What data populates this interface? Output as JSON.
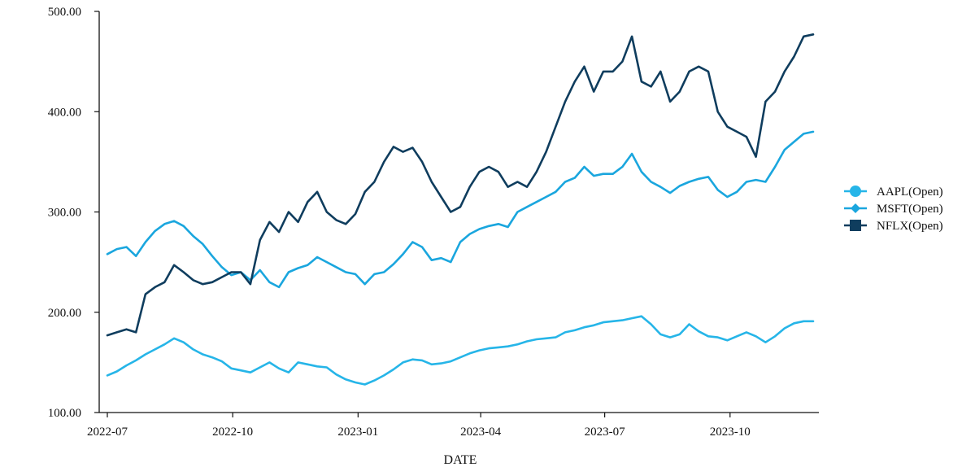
{
  "chart_data": {
    "type": "line",
    "title": "",
    "xlabel": "DATE",
    "ylabel": "",
    "xlim": [
      "2022-07-01",
      "2023-12-01"
    ],
    "ylim": [
      100,
      500
    ],
    "y_ticks": [
      "100.00",
      "200.00",
      "300.00",
      "400.00",
      "500.00"
    ],
    "x_ticks": [
      {
        "date": "2022-07-01",
        "label": "2022-07"
      },
      {
        "date": "2022-10-01",
        "label": "2022-10"
      },
      {
        "date": "2023-01-01",
        "label": "2023-01"
      },
      {
        "date": "2023-04-01",
        "label": "2023-04"
      },
      {
        "date": "2023-07-01",
        "label": "2023-07"
      },
      {
        "date": "2023-10-01",
        "label": "2023-10"
      }
    ],
    "grid": false,
    "legend_position": "right",
    "series": [
      {
        "name": "AAPL(Open)",
        "color": "#26b5e8",
        "marker": "circle",
        "points": [
          [
            "2022-07-01",
            137
          ],
          [
            "2022-07-08",
            141
          ],
          [
            "2022-07-15",
            147
          ],
          [
            "2022-07-22",
            152
          ],
          [
            "2022-07-29",
            158
          ],
          [
            "2022-08-05",
            163
          ],
          [
            "2022-08-12",
            168
          ],
          [
            "2022-08-19",
            174
          ],
          [
            "2022-08-26",
            170
          ],
          [
            "2022-09-02",
            163
          ],
          [
            "2022-09-09",
            158
          ],
          [
            "2022-09-16",
            155
          ],
          [
            "2022-09-23",
            151
          ],
          [
            "2022-09-30",
            144
          ],
          [
            "2022-10-07",
            142
          ],
          [
            "2022-10-14",
            140
          ],
          [
            "2022-10-21",
            145
          ],
          [
            "2022-10-28",
            150
          ],
          [
            "2022-11-04",
            144
          ],
          [
            "2022-11-11",
            140
          ],
          [
            "2022-11-18",
            150
          ],
          [
            "2022-11-25",
            148
          ],
          [
            "2022-12-02",
            146
          ],
          [
            "2022-12-09",
            145
          ],
          [
            "2022-12-16",
            138
          ],
          [
            "2022-12-23",
            133
          ],
          [
            "2022-12-30",
            130
          ],
          [
            "2023-01-06",
            128
          ],
          [
            "2023-01-13",
            132
          ],
          [
            "2023-01-20",
            137
          ],
          [
            "2023-01-27",
            143
          ],
          [
            "2023-02-03",
            150
          ],
          [
            "2023-02-10",
            153
          ],
          [
            "2023-02-17",
            152
          ],
          [
            "2023-02-24",
            148
          ],
          [
            "2023-03-03",
            149
          ],
          [
            "2023-03-10",
            151
          ],
          [
            "2023-03-17",
            155
          ],
          [
            "2023-03-24",
            159
          ],
          [
            "2023-03-31",
            162
          ],
          [
            "2023-04-07",
            164
          ],
          [
            "2023-04-14",
            165
          ],
          [
            "2023-04-21",
            166
          ],
          [
            "2023-04-28",
            168
          ],
          [
            "2023-05-05",
            171
          ],
          [
            "2023-05-12",
            173
          ],
          [
            "2023-05-19",
            174
          ],
          [
            "2023-05-26",
            175
          ],
          [
            "2023-06-02",
            180
          ],
          [
            "2023-06-09",
            182
          ],
          [
            "2023-06-16",
            185
          ],
          [
            "2023-06-23",
            187
          ],
          [
            "2023-06-30",
            190
          ],
          [
            "2023-07-07",
            191
          ],
          [
            "2023-07-14",
            192
          ],
          [
            "2023-07-21",
            194
          ],
          [
            "2023-07-28",
            196
          ],
          [
            "2023-08-04",
            188
          ],
          [
            "2023-08-11",
            178
          ],
          [
            "2023-08-18",
            175
          ],
          [
            "2023-08-25",
            178
          ],
          [
            "2023-09-01",
            188
          ],
          [
            "2023-09-08",
            181
          ],
          [
            "2023-09-15",
            176
          ],
          [
            "2023-09-22",
            175
          ],
          [
            "2023-09-29",
            172
          ],
          [
            "2023-10-06",
            176
          ],
          [
            "2023-10-13",
            180
          ],
          [
            "2023-10-20",
            176
          ],
          [
            "2023-10-27",
            170
          ],
          [
            "2023-11-03",
            176
          ],
          [
            "2023-11-10",
            184
          ],
          [
            "2023-11-17",
            189
          ],
          [
            "2023-11-24",
            191
          ],
          [
            "2023-12-01",
            191
          ]
        ]
      },
      {
        "name": "MSFT(Open)",
        "color": "#1aa6de",
        "marker": "diamond",
        "points": [
          [
            "2022-07-01",
            258
          ],
          [
            "2022-07-08",
            263
          ],
          [
            "2022-07-15",
            265
          ],
          [
            "2022-07-22",
            256
          ],
          [
            "2022-07-29",
            270
          ],
          [
            "2022-08-05",
            281
          ],
          [
            "2022-08-12",
            288
          ],
          [
            "2022-08-19",
            291
          ],
          [
            "2022-08-26",
            286
          ],
          [
            "2022-09-02",
            276
          ],
          [
            "2022-09-09",
            268
          ],
          [
            "2022-09-16",
            256
          ],
          [
            "2022-09-23",
            245
          ],
          [
            "2022-09-30",
            237
          ],
          [
            "2022-10-07",
            240
          ],
          [
            "2022-10-14",
            232
          ],
          [
            "2022-10-21",
            242
          ],
          [
            "2022-10-28",
            230
          ],
          [
            "2022-11-04",
            225
          ],
          [
            "2022-11-11",
            240
          ],
          [
            "2022-11-18",
            244
          ],
          [
            "2022-11-25",
            247
          ],
          [
            "2022-12-02",
            255
          ],
          [
            "2022-12-09",
            250
          ],
          [
            "2022-12-16",
            245
          ],
          [
            "2022-12-23",
            240
          ],
          [
            "2022-12-30",
            238
          ],
          [
            "2023-01-06",
            228
          ],
          [
            "2023-01-13",
            238
          ],
          [
            "2023-01-20",
            240
          ],
          [
            "2023-01-27",
            248
          ],
          [
            "2023-02-03",
            258
          ],
          [
            "2023-02-10",
            270
          ],
          [
            "2023-02-17",
            265
          ],
          [
            "2023-02-24",
            252
          ],
          [
            "2023-03-03",
            254
          ],
          [
            "2023-03-10",
            250
          ],
          [
            "2023-03-17",
            270
          ],
          [
            "2023-03-24",
            278
          ],
          [
            "2023-03-31",
            283
          ],
          [
            "2023-04-07",
            286
          ],
          [
            "2023-04-14",
            288
          ],
          [
            "2023-04-21",
            285
          ],
          [
            "2023-04-28",
            300
          ],
          [
            "2023-05-05",
            305
          ],
          [
            "2023-05-12",
            310
          ],
          [
            "2023-05-19",
            315
          ],
          [
            "2023-05-26",
            320
          ],
          [
            "2023-06-02",
            330
          ],
          [
            "2023-06-09",
            334
          ],
          [
            "2023-06-16",
            345
          ],
          [
            "2023-06-23",
            336
          ],
          [
            "2023-06-30",
            338
          ],
          [
            "2023-07-07",
            338
          ],
          [
            "2023-07-14",
            345
          ],
          [
            "2023-07-21",
            358
          ],
          [
            "2023-07-28",
            340
          ],
          [
            "2023-08-04",
            330
          ],
          [
            "2023-08-11",
            325
          ],
          [
            "2023-08-18",
            319
          ],
          [
            "2023-08-25",
            326
          ],
          [
            "2023-09-01",
            330
          ],
          [
            "2023-09-08",
            333
          ],
          [
            "2023-09-15",
            335
          ],
          [
            "2023-09-22",
            322
          ],
          [
            "2023-09-29",
            315
          ],
          [
            "2023-10-06",
            320
          ],
          [
            "2023-10-13",
            330
          ],
          [
            "2023-10-20",
            332
          ],
          [
            "2023-10-27",
            330
          ],
          [
            "2023-11-03",
            345
          ],
          [
            "2023-11-10",
            362
          ],
          [
            "2023-11-17",
            370
          ],
          [
            "2023-11-24",
            378
          ],
          [
            "2023-12-01",
            380
          ]
        ]
      },
      {
        "name": "NFLX(Open)",
        "color": "#0f3d5e",
        "marker": "square",
        "points": [
          [
            "2022-07-01",
            177
          ],
          [
            "2022-07-08",
            180
          ],
          [
            "2022-07-15",
            183
          ],
          [
            "2022-07-22",
            180
          ],
          [
            "2022-07-29",
            218
          ],
          [
            "2022-08-05",
            225
          ],
          [
            "2022-08-12",
            230
          ],
          [
            "2022-08-19",
            247
          ],
          [
            "2022-08-26",
            240
          ],
          [
            "2022-09-02",
            232
          ],
          [
            "2022-09-09",
            228
          ],
          [
            "2022-09-16",
            230
          ],
          [
            "2022-09-23",
            235
          ],
          [
            "2022-09-30",
            240
          ],
          [
            "2022-10-07",
            240
          ],
          [
            "2022-10-14",
            228
          ],
          [
            "2022-10-21",
            272
          ],
          [
            "2022-10-28",
            290
          ],
          [
            "2022-11-04",
            280
          ],
          [
            "2022-11-11",
            300
          ],
          [
            "2022-11-18",
            290
          ],
          [
            "2022-11-25",
            310
          ],
          [
            "2022-12-02",
            320
          ],
          [
            "2022-12-09",
            300
          ],
          [
            "2022-12-16",
            292
          ],
          [
            "2022-12-23",
            288
          ],
          [
            "2022-12-30",
            298
          ],
          [
            "2023-01-06",
            320
          ],
          [
            "2023-01-13",
            330
          ],
          [
            "2023-01-20",
            350
          ],
          [
            "2023-01-27",
            365
          ],
          [
            "2023-02-03",
            360
          ],
          [
            "2023-02-10",
            364
          ],
          [
            "2023-02-17",
            350
          ],
          [
            "2023-02-24",
            330
          ],
          [
            "2023-03-03",
            315
          ],
          [
            "2023-03-10",
            300
          ],
          [
            "2023-03-17",
            305
          ],
          [
            "2023-03-24",
            325
          ],
          [
            "2023-03-31",
            340
          ],
          [
            "2023-04-07",
            345
          ],
          [
            "2023-04-14",
            340
          ],
          [
            "2023-04-21",
            325
          ],
          [
            "2023-04-28",
            330
          ],
          [
            "2023-05-05",
            325
          ],
          [
            "2023-05-12",
            340
          ],
          [
            "2023-05-19",
            360
          ],
          [
            "2023-05-26",
            385
          ],
          [
            "2023-06-02",
            410
          ],
          [
            "2023-06-09",
            430
          ],
          [
            "2023-06-16",
            445
          ],
          [
            "2023-06-23",
            420
          ],
          [
            "2023-06-30",
            440
          ],
          [
            "2023-07-07",
            440
          ],
          [
            "2023-07-14",
            450
          ],
          [
            "2023-07-21",
            475
          ],
          [
            "2023-07-28",
            430
          ],
          [
            "2023-08-04",
            425
          ],
          [
            "2023-08-11",
            440
          ],
          [
            "2023-08-18",
            410
          ],
          [
            "2023-08-25",
            420
          ],
          [
            "2023-09-01",
            440
          ],
          [
            "2023-09-08",
            445
          ],
          [
            "2023-09-15",
            440
          ],
          [
            "2023-09-22",
            400
          ],
          [
            "2023-09-29",
            385
          ],
          [
            "2023-10-06",
            380
          ],
          [
            "2023-10-13",
            375
          ],
          [
            "2023-10-20",
            355
          ],
          [
            "2023-10-27",
            410
          ],
          [
            "2023-11-03",
            420
          ],
          [
            "2023-11-10",
            440
          ],
          [
            "2023-11-17",
            455
          ],
          [
            "2023-11-24",
            475
          ],
          [
            "2023-12-01",
            477
          ]
        ]
      }
    ]
  }
}
